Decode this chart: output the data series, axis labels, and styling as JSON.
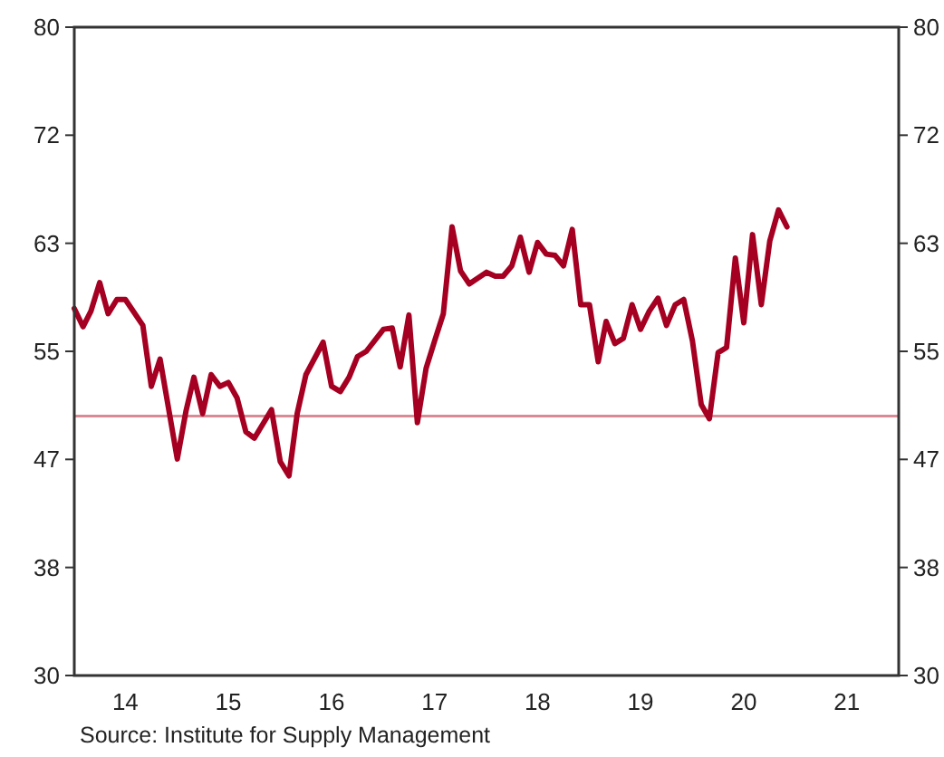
{
  "chart_data": {
    "type": "line",
    "x": [
      "2014-01",
      "2014-02",
      "2014-03",
      "2014-04",
      "2014-05",
      "2014-06",
      "2014-07",
      "2014-09",
      "2014-10",
      "2014-11",
      "2015-01",
      "2015-02",
      "2015-03",
      "2015-04",
      "2015-05",
      "2015-06",
      "2015-07",
      "2015-08",
      "2015-09",
      "2015-10",
      "2015-12",
      "2016-01",
      "2016-02",
      "2016-03",
      "2016-04",
      "2016-06",
      "2016-07",
      "2016-08",
      "2016-09",
      "2016-10",
      "2016-11",
      "2017-01",
      "2017-02",
      "2017-03",
      "2017-04",
      "2017-05",
      "2017-06",
      "2017-07",
      "2017-08",
      "2017-09",
      "2017-10",
      "2017-11",
      "2018-01",
      "2018-02",
      "2018-03",
      "2018-04",
      "2018-05",
      "2018-06",
      "2018-07",
      "2018-08",
      "2018-09",
      "2018-10",
      "2018-11",
      "2018-12",
      "2019-01",
      "2019-02",
      "2019-03",
      "2019-04",
      "2019-05",
      "2019-06",
      "2019-07",
      "2019-08",
      "2019-09",
      "2019-10",
      "2019-11",
      "2019-12",
      "2020-01",
      "2020-02",
      "2020-03",
      "2020-04",
      "2020-05",
      "2020-06",
      "2020-07",
      "2020-08",
      "2020-09",
      "2020-10",
      "2020-11",
      "2020-12"
    ],
    "series": [
      {
        "color": "#a50021",
        "values": [
          58.3,
          56.9,
          58.1,
          60.3,
          57.9,
          59.0,
          59.0,
          57.0,
          52.3,
          54.4,
          46.7,
          50.4,
          53.0,
          50.2,
          53.2,
          52.3,
          52.6,
          51.4,
          48.8,
          48.3,
          50.5,
          46.5,
          45.4,
          50.2,
          53.2,
          55.7,
          52.3,
          51.9,
          53.0,
          54.6,
          55.0,
          56.7,
          56.8,
          53.8,
          57.8,
          49.5,
          53.7,
          55.8,
          57.9,
          64.6,
          61.2,
          60.2,
          61.1,
          60.8,
          60.8,
          61.6,
          63.8,
          61.1,
          63.4,
          62.5,
          62.4,
          61.6,
          64.4,
          58.6,
          58.6,
          54.2,
          57.3,
          55.6,
          56.0,
          58.6,
          56.7,
          58.1,
          59.1,
          57.0,
          58.6,
          59.0,
          55.8,
          50.9,
          49.8,
          54.9,
          55.3,
          62.2,
          57.2,
          64.0,
          58.6,
          63.5,
          65.9,
          64.6
        ]
      }
    ],
    "xlim": [
      "2014-01",
      "2022-01"
    ],
    "xticks": [
      {
        "value": "2014-07",
        "label": "14"
      },
      {
        "value": "2015-07",
        "label": "15"
      },
      {
        "value": "2016-07",
        "label": "16"
      },
      {
        "value": "2017-07",
        "label": "17"
      },
      {
        "value": "2018-07",
        "label": "18"
      },
      {
        "value": "2019-07",
        "label": "19"
      },
      {
        "value": "2020-07",
        "label": "20"
      },
      {
        "value": "2021-07",
        "label": "21"
      }
    ],
    "ylim": [
      30,
      80
    ],
    "yticks": [
      30,
      {
        "value": 38.333,
        "label": "38"
      },
      {
        "value": 46.667,
        "label": "47"
      },
      55,
      {
        "value": 63.333,
        "label": "63"
      },
      {
        "value": 71.667,
        "label": "72"
      },
      80
    ],
    "y2lim": [
      30,
      80
    ],
    "y2ticks": [
      30,
      {
        "value": 38.333,
        "label": "38"
      },
      {
        "value": 46.667,
        "label": "47"
      },
      55,
      {
        "value": 63.333,
        "label": "63"
      },
      {
        "value": 71.667,
        "label": "72"
      },
      80
    ],
    "ref_lines": [
      {
        "axis": "y",
        "value": 50,
        "color": "#d98a94"
      }
    ],
    "annotations": [
      "Source:  Institute for Supply Management"
    ],
    "grid": false,
    "marker": "none",
    "line_style": "solid"
  }
}
